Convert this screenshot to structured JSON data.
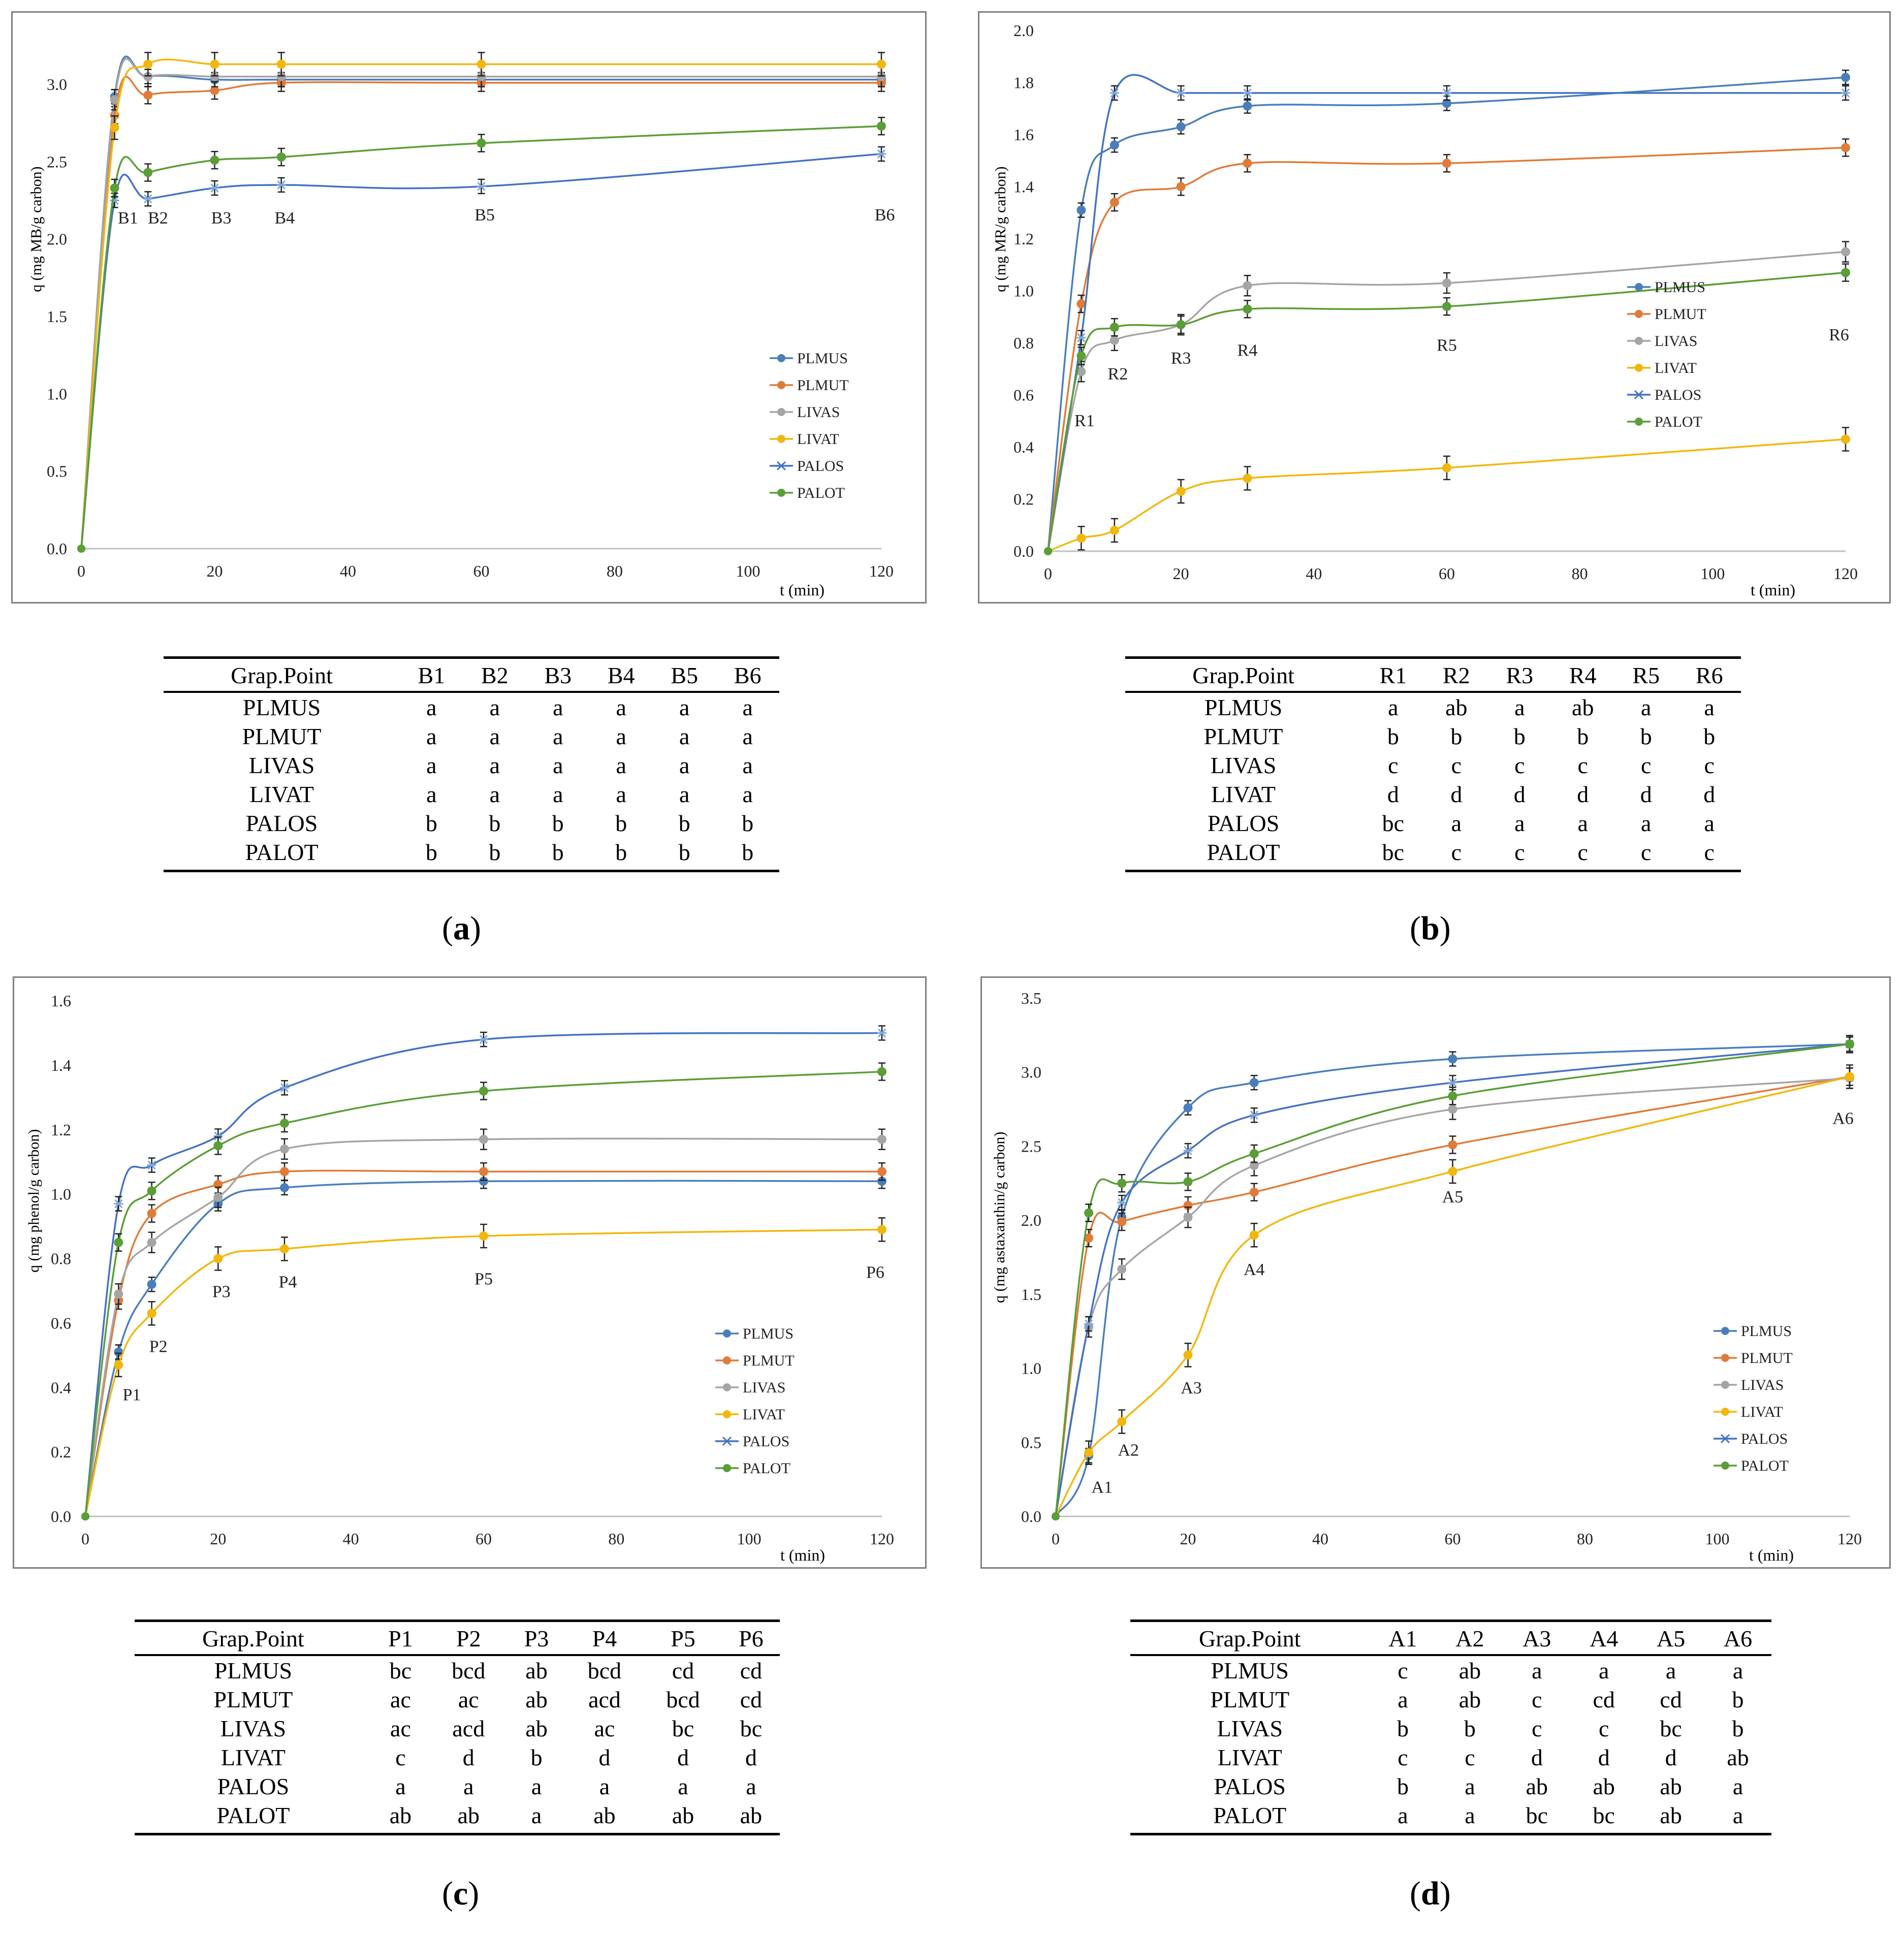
{
  "colors": {
    "PLMUS": "#4a7ebb",
    "PLMUT": "#e07b39",
    "LIVAS": "#a5a5a5",
    "LIVAT": "#f2b70d",
    "PALOS": "#4472c4",
    "PALOT": "#5a9e37"
  },
  "panels": [
    {
      "caption_letter": "a",
      "table": {
        "header": [
          "Grap.Point",
          "B1",
          "B2",
          "B3",
          "B4",
          "B5",
          "B6"
        ],
        "rows": [
          [
            "PLMUS",
            "a",
            "a",
            "a",
            "a",
            "a",
            "a"
          ],
          [
            "PLMUT",
            "a",
            "a",
            "a",
            "a",
            "a",
            "a"
          ],
          [
            "LIVAS",
            "a",
            "a",
            "a",
            "a",
            "a",
            "a"
          ],
          [
            "LIVAT",
            "a",
            "a",
            "a",
            "a",
            "a",
            "a"
          ],
          [
            "PALOS",
            "b",
            "b",
            "b",
            "b",
            "b",
            "b"
          ],
          [
            "PALOT",
            "b",
            "b",
            "b",
            "b",
            "b",
            "b"
          ]
        ]
      }
    },
    {
      "caption_letter": "b",
      "table": {
        "header": [
          "Grap.Point",
          "R1",
          "R2",
          "R3",
          "R4",
          "R5",
          "R6"
        ],
        "rows": [
          [
            "PLMUS",
            "a",
            "ab",
            "a",
            "ab",
            "a",
            "a"
          ],
          [
            "PLMUT",
            "b",
            "b",
            "b",
            "b",
            "b",
            "b"
          ],
          [
            "LIVAS",
            "c",
            "c",
            "c",
            "c",
            "c",
            "c"
          ],
          [
            "LIVAT",
            "d",
            "d",
            "d",
            "d",
            "d",
            "d"
          ],
          [
            "PALOS",
            "bc",
            "a",
            "a",
            "a",
            "a",
            "a"
          ],
          [
            "PALOT",
            "bc",
            "c",
            "c",
            "c",
            "c",
            "c"
          ]
        ]
      }
    },
    {
      "caption_letter": "c",
      "table": {
        "header": [
          "Grap.Point",
          "P1",
          "P2",
          "P3",
          "P4",
          "P5",
          "P6"
        ],
        "rows": [
          [
            "PLMUS",
            "bc",
            "bcd",
            "ab",
            "bcd",
            "cd",
            "cd"
          ],
          [
            "PLMUT",
            "ac",
            "ac",
            "ab",
            "acd",
            "bcd",
            "cd"
          ],
          [
            "LIVAS",
            "ac",
            "acd",
            "ab",
            "ac",
            "bc",
            "bc"
          ],
          [
            "LIVAT",
            "c",
            "d",
            "b",
            "d",
            "d",
            "d"
          ],
          [
            "PALOS",
            "a",
            "a",
            "a",
            "a",
            "a",
            "a"
          ],
          [
            "PALOT",
            "ab",
            "ab",
            "a",
            "ab",
            "ab",
            "ab"
          ]
        ]
      }
    },
    {
      "caption_letter": "d",
      "table": {
        "header": [
          "Grap.Point",
          "A1",
          "A2",
          "A3",
          "A4",
          "A5",
          "A6"
        ],
        "rows": [
          [
            "PLMUS",
            "c",
            "ab",
            "a",
            "a",
            "a",
            "a"
          ],
          [
            "PLMUT",
            "a",
            "ab",
            "c",
            "cd",
            "cd",
            "b"
          ],
          [
            "LIVAS",
            "b",
            "b",
            "c",
            "c",
            "bc",
            "b"
          ],
          [
            "LIVAT",
            "c",
            "c",
            "d",
            "d",
            "d",
            "ab"
          ],
          [
            "PALOS",
            "b",
            "a",
            "ab",
            "ab",
            "ab",
            "a"
          ],
          [
            "PALOT",
            "a",
            "a",
            "bc",
            "bc",
            "ab",
            "a"
          ]
        ]
      }
    }
  ],
  "chart_data": [
    {
      "type": "line",
      "panel": "a",
      "ylabel": "q (mg MB/g carbon)",
      "xlabel": "t (min)",
      "xlim": [
        0,
        120
      ],
      "ylim": [
        0,
        3.2
      ],
      "xticks": [
        0,
        20,
        40,
        60,
        80,
        100,
        120
      ],
      "yticks": [
        0.0,
        0.5,
        1.0,
        1.5,
        2.0,
        2.5,
        3.0
      ],
      "ytick_labels": [
        "0.0",
        "0.5",
        "1.0",
        "1.5",
        "2.0",
        "2.5",
        "3.0"
      ],
      "x": [
        0,
        5,
        10,
        20,
        30,
        60,
        120
      ],
      "legend": [
        "PLMUS",
        "PLMUT",
        "LIVAS",
        "LIVAT",
        "PALOS",
        "PALOT"
      ],
      "series": [
        {
          "name": "PLMUS",
          "marker": "circle",
          "values": [
            0,
            2.92,
            3.05,
            3.03,
            3.03,
            3.03,
            3.03
          ]
        },
        {
          "name": "PLMUT",
          "marker": "circle",
          "values": [
            0,
            2.8,
            2.93,
            2.96,
            3.01,
            3.01,
            3.01
          ]
        },
        {
          "name": "LIVAS",
          "marker": "circle",
          "values": [
            0,
            2.9,
            3.05,
            3.05,
            3.05,
            3.05,
            3.05
          ]
        },
        {
          "name": "LIVAT",
          "marker": "circle",
          "values": [
            0,
            2.72,
            3.13,
            3.13,
            3.13,
            3.13,
            3.13
          ]
        },
        {
          "name": "PALOS",
          "marker": "star",
          "values": [
            0,
            2.25,
            2.26,
            2.33,
            2.35,
            2.34,
            2.55
          ]
        },
        {
          "name": "PALOT",
          "marker": "circle",
          "values": [
            0,
            2.33,
            2.43,
            2.51,
            2.53,
            2.62,
            2.73
          ]
        }
      ],
      "point_labels": [
        {
          "text": "B1",
          "x": 7,
          "y": 2.1
        },
        {
          "text": "B2",
          "x": 11.5,
          "y": 2.1
        },
        {
          "text": "B3",
          "x": 21,
          "y": 2.1
        },
        {
          "text": "B4",
          "x": 30.5,
          "y": 2.1
        },
        {
          "text": "B5",
          "x": 60.5,
          "y": 2.12
        },
        {
          "text": "B6",
          "x": 120.5,
          "y": 2.12
        }
      ]
    },
    {
      "type": "line",
      "panel": "b",
      "ylabel": "q (mg MR/g carbon)",
      "xlabel": "t (min)",
      "xlim": [
        0,
        120
      ],
      "ylim": [
        0,
        2.0
      ],
      "xticks": [
        0,
        20,
        40,
        60,
        80,
        100,
        120
      ],
      "yticks": [
        0.0,
        0.2,
        0.4,
        0.6,
        0.8,
        1.0,
        1.2,
        1.4,
        1.6,
        1.8,
        2.0
      ],
      "ytick_labels": [
        "0.0",
        "0.2",
        "0.4",
        "0.6",
        "0.8",
        "1.0",
        "1.2",
        "1.4",
        "1.6",
        "1.8",
        "2.0"
      ],
      "x": [
        0,
        5,
        10,
        20,
        30,
        60,
        120
      ],
      "legend": [
        "PLMUS",
        "PLMUT",
        "LIVAS",
        "LIVAT",
        "PALOS",
        "PALOT"
      ],
      "series": [
        {
          "name": "PLMUS",
          "marker": "circle",
          "values": [
            0,
            1.31,
            1.56,
            1.63,
            1.71,
            1.72,
            1.82
          ]
        },
        {
          "name": "PLMUT",
          "marker": "circle",
          "values": [
            0,
            0.95,
            1.34,
            1.4,
            1.49,
            1.49,
            1.55
          ]
        },
        {
          "name": "LIVAS",
          "marker": "circle",
          "values": [
            0,
            0.69,
            0.81,
            0.87,
            1.02,
            1.03,
            1.15
          ]
        },
        {
          "name": "LIVAT",
          "marker": "circle",
          "values": [
            0,
            0.05,
            0.08,
            0.23,
            0.28,
            0.32,
            0.43
          ]
        },
        {
          "name": "PALOS",
          "marker": "star",
          "values": [
            0,
            0.82,
            1.76,
            1.76,
            1.76,
            1.76,
            1.76
          ]
        },
        {
          "name": "PALOT",
          "marker": "circle",
          "values": [
            0,
            0.75,
            0.86,
            0.87,
            0.93,
            0.94,
            1.07
          ]
        }
      ],
      "point_labels": [
        {
          "text": "R1",
          "x": 5.5,
          "y": 0.48
        },
        {
          "text": "R2",
          "x": 10.5,
          "y": 0.66
        },
        {
          "text": "R3",
          "x": 20,
          "y": 0.72
        },
        {
          "text": "R4",
          "x": 30,
          "y": 0.75
        },
        {
          "text": "R5",
          "x": 60,
          "y": 0.77
        },
        {
          "text": "R6",
          "x": 119,
          "y": 0.81
        }
      ]
    },
    {
      "type": "line",
      "panel": "c",
      "ylabel": "q (mg phenol/g carbon)",
      "xlabel": "t (min)",
      "xlim": [
        0,
        120
      ],
      "ylim": [
        0,
        1.6
      ],
      "xticks": [
        0,
        20,
        40,
        60,
        80,
        100,
        120
      ],
      "yticks": [
        0.0,
        0.2,
        0.4,
        0.6,
        0.8,
        1.0,
        1.2,
        1.4,
        1.6
      ],
      "ytick_labels": [
        "0.0",
        "0.2",
        "0.4",
        "0.6",
        "0.8",
        "1.0",
        "1.2",
        "1.4",
        "1.6"
      ],
      "x": [
        0,
        5,
        10,
        20,
        30,
        60,
        120
      ],
      "legend": [
        "PLMUS",
        "PLMUT",
        "LIVAS",
        "LIVAT",
        "PALOS",
        "PALOT"
      ],
      "series": [
        {
          "name": "PLMUS",
          "marker": "circle",
          "values": [
            0,
            0.51,
            0.72,
            0.97,
            1.02,
            1.04,
            1.04
          ]
        },
        {
          "name": "PLMUT",
          "marker": "circle",
          "values": [
            0,
            0.67,
            0.94,
            1.03,
            1.07,
            1.07,
            1.07
          ]
        },
        {
          "name": "LIVAS",
          "marker": "circle",
          "values": [
            0,
            0.69,
            0.85,
            0.99,
            1.14,
            1.17,
            1.17
          ]
        },
        {
          "name": "LIVAT",
          "marker": "circle",
          "values": [
            0,
            0.47,
            0.63,
            0.8,
            0.83,
            0.87,
            0.89
          ]
        },
        {
          "name": "PALOS",
          "marker": "star",
          "values": [
            0,
            0.97,
            1.09,
            1.18,
            1.33,
            1.48,
            1.5
          ]
        },
        {
          "name": "PALOT",
          "marker": "circle",
          "values": [
            0,
            0.85,
            1.01,
            1.15,
            1.22,
            1.32,
            1.38
          ]
        }
      ],
      "point_labels": [
        {
          "text": "P1",
          "x": 7,
          "y": 0.36
        },
        {
          "text": "P2",
          "x": 11,
          "y": 0.51
        },
        {
          "text": "P3",
          "x": 20.5,
          "y": 0.68
        },
        {
          "text": "P4",
          "x": 30.5,
          "y": 0.71
        },
        {
          "text": "P5",
          "x": 60,
          "y": 0.72
        },
        {
          "text": "P6",
          "x": 119,
          "y": 0.74
        }
      ]
    },
    {
      "type": "line",
      "panel": "d",
      "ylabel": "q (mg astaxanthin/g carbon)",
      "xlabel": "t (min)",
      "xlim": [
        0,
        120
      ],
      "ylim": [
        0,
        3.5
      ],
      "xticks": [
        0,
        20,
        40,
        60,
        80,
        100,
        120
      ],
      "yticks": [
        0.0,
        0.5,
        1.0,
        1.5,
        2.0,
        2.5,
        3.0,
        3.5
      ],
      "ytick_labels": [
        "0.0",
        "0.5",
        "1.0",
        "1.5",
        "2.0",
        "2.5",
        "3.0",
        "3.5"
      ],
      "x": [
        0,
        5,
        10,
        20,
        30,
        60,
        120
      ],
      "legend": [
        "PLMUS",
        "PLMUT",
        "LIVAS",
        "LIVAT",
        "PALOS",
        "PALOT"
      ],
      "series": [
        {
          "name": "PLMUS",
          "marker": "circle",
          "values": [
            0,
            0.41,
            2.02,
            2.76,
            2.93,
            3.09,
            3.19
          ]
        },
        {
          "name": "PLMUT",
          "marker": "circle",
          "values": [
            0,
            1.88,
            1.99,
            2.1,
            2.19,
            2.51,
            2.97
          ]
        },
        {
          "name": "LIVAS",
          "marker": "circle",
          "values": [
            0,
            1.28,
            1.67,
            2.02,
            2.37,
            2.75,
            2.96
          ]
        },
        {
          "name": "LIVAT",
          "marker": "circle",
          "values": [
            0,
            0.43,
            0.64,
            1.09,
            1.9,
            2.33,
            2.97
          ]
        },
        {
          "name": "PALOS",
          "marker": "star",
          "values": [
            0,
            1.3,
            2.12,
            2.47,
            2.71,
            2.93,
            3.19
          ]
        },
        {
          "name": "PALOT",
          "marker": "circle",
          "values": [
            0,
            2.05,
            2.25,
            2.26,
            2.45,
            2.84,
            3.19
          ]
        }
      ],
      "point_labels": [
        {
          "text": "A1",
          "x": 7,
          "y": 0.16
        },
        {
          "text": "A2",
          "x": 11,
          "y": 0.41
        },
        {
          "text": "A3",
          "x": 20.5,
          "y": 0.83
        },
        {
          "text": "A4",
          "x": 30,
          "y": 1.63
        },
        {
          "text": "A5",
          "x": 60,
          "y": 2.12
        },
        {
          "text": "A6",
          "x": 119,
          "y": 2.65
        }
      ]
    }
  ]
}
